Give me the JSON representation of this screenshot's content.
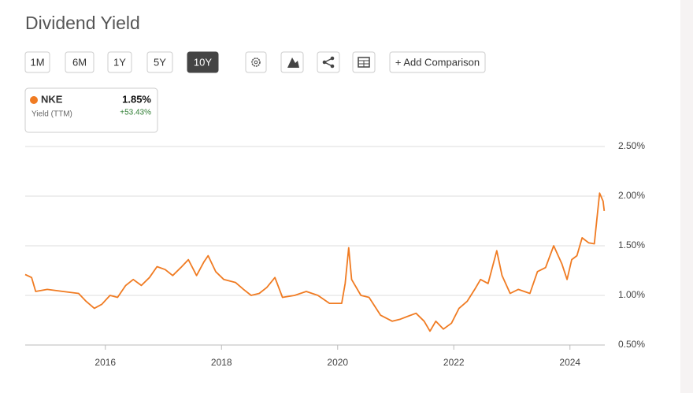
{
  "header": {
    "title": "Dividend Yield"
  },
  "range_buttons": [
    "1M",
    "6M",
    "1Y",
    "5Y",
    "10Y"
  ],
  "active_range": "10Y",
  "add_comparison": "+ Add Comparison",
  "legend_card": {
    "value": "1.85%",
    "subtitle": "Yield (TTM)",
    "change": "+53.43%"
  },
  "chart_data": {
    "type": "line",
    "series": [
      {
        "name": "NKE",
        "color": "#f07b22",
        "x": [
          2014.62,
          2014.73,
          2014.8,
          2015.0,
          2015.27,
          2015.54,
          2015.67,
          2015.81,
          2015.94,
          2016.08,
          2016.21,
          2016.35,
          2016.48,
          2016.62,
          2016.76,
          2016.89,
          2017.03,
          2017.16,
          2017.3,
          2017.43,
          2017.57,
          2017.7,
          2017.77,
          2017.9,
          2018.04,
          2018.24,
          2018.38,
          2018.51,
          2018.65,
          2018.78,
          2018.92,
          2019.05,
          2019.26,
          2019.46,
          2019.66,
          2019.86,
          2020.07,
          2020.13,
          2020.19,
          2020.24,
          2020.4,
          2020.54,
          2020.74,
          2020.94,
          2021.08,
          2021.21,
          2021.35,
          2021.49,
          2021.59,
          2021.69,
          2021.82,
          2021.96,
          2022.09,
          2022.23,
          2022.36,
          2022.46,
          2022.59,
          2022.74,
          2022.83,
          2022.97,
          2023.11,
          2023.31,
          2023.44,
          2023.58,
          2023.72,
          2023.86,
          2023.95,
          2024.03,
          2024.12,
          2024.21,
          2024.32,
          2024.42,
          2024.46,
          2024.51,
          2024.57,
          2024.59
        ],
        "values": [
          1.21,
          1.18,
          1.04,
          1.06,
          1.04,
          1.02,
          0.94,
          0.87,
          0.91,
          1.0,
          0.98,
          1.1,
          1.16,
          1.1,
          1.18,
          1.29,
          1.26,
          1.2,
          1.28,
          1.36,
          1.2,
          1.34,
          1.4,
          1.24,
          1.16,
          1.13,
          1.06,
          1.0,
          1.02,
          1.08,
          1.18,
          0.98,
          1.0,
          1.04,
          1.0,
          0.92,
          0.92,
          1.12,
          1.48,
          1.16,
          1.0,
          0.98,
          0.8,
          0.74,
          0.76,
          0.79,
          0.82,
          0.74,
          0.64,
          0.74,
          0.66,
          0.72,
          0.87,
          0.94,
          1.06,
          1.16,
          1.12,
          1.45,
          1.2,
          1.02,
          1.06,
          1.02,
          1.24,
          1.28,
          1.5,
          1.32,
          1.16,
          1.36,
          1.4,
          1.58,
          1.53,
          1.52,
          1.75,
          2.03,
          1.95,
          1.85
        ]
      }
    ],
    "xlim": [
      2014.62,
      2024.6
    ],
    "xticks": [
      2016,
      2018,
      2020,
      2022,
      2024
    ],
    "ylim": [
      0.5,
      2.5
    ],
    "yticks": [
      {
        "value": 0.5,
        "label": "0.50%"
      },
      {
        "value": 1.0,
        "label": "1.00%"
      },
      {
        "value": 1.5,
        "label": "1.50%"
      },
      {
        "value": 2.0,
        "label": "2.00%"
      },
      {
        "value": 2.5,
        "label": "2.50%"
      }
    ],
    "grid": true
  }
}
